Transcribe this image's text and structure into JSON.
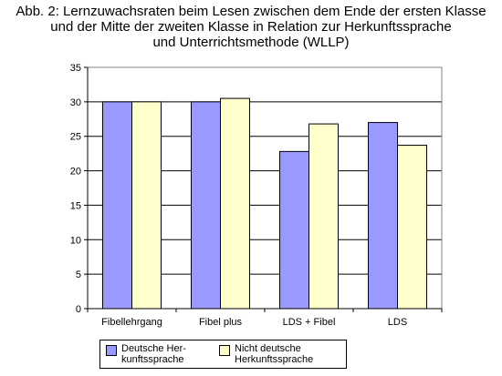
{
  "title_lines": [
    "Abb. 2: Lernzuwachsraten beim Lesen zwischen dem Ende der ersten Klasse",
    "und der Mitte der zweiten Klasse in Relation zur Herkunftssprache",
    "und Unterrichtsmethode (WLLP)"
  ],
  "chart_data": {
    "type": "bar",
    "categories": [
      "Fibellehrgang",
      "Fibel plus",
      "LDS + Fibel",
      "LDS"
    ],
    "series": [
      {
        "name": "Deutsche Her-\nkunftssprache",
        "values": [
          30,
          30,
          22.8,
          27
        ],
        "color": "#9999ff"
      },
      {
        "name": "Nicht deutsche\nHerkunftssprache",
        "values": [
          30,
          30.5,
          26.8,
          23.7
        ],
        "color": "#ffffcc"
      }
    ],
    "ylim": [
      0,
      35
    ],
    "yticks": [
      0,
      5,
      10,
      15,
      20,
      25,
      30,
      35
    ],
    "grid": true,
    "legend_position": "bottom"
  }
}
